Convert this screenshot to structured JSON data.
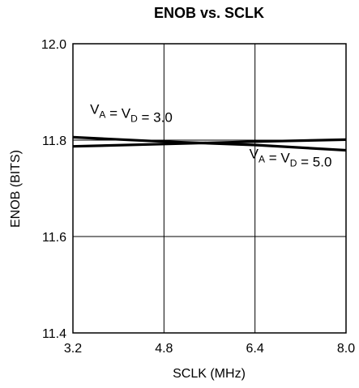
{
  "chart_data": {
    "type": "line",
    "title": "ENOB vs. SCLK",
    "xlabel": "SCLK (MHz)",
    "ylabel": "ENOB (BITS)",
    "xlim": [
      3.2,
      8.0
    ],
    "ylim": [
      11.4,
      12.0
    ],
    "x_ticks": [
      "3.2",
      "4.8",
      "6.4",
      "8.0"
    ],
    "y_ticks": [
      "12.0",
      "11.8",
      "11.6",
      "11.4"
    ],
    "x_tick_values": [
      3.2,
      4.8,
      6.4,
      8.0
    ],
    "y_tick_values": [
      12.0,
      11.8,
      11.6,
      11.4
    ],
    "grid": true,
    "series": [
      {
        "x": [
          3.2,
          4.8,
          6.4,
          8.0
        ],
        "values": [
          11.806,
          11.797,
          11.79,
          11.779
        ]
      },
      {
        "x": [
          3.2,
          4.8,
          6.4,
          8.0
        ],
        "values": [
          11.787,
          11.792,
          11.797,
          11.801
        ]
      }
    ],
    "annotations": [
      {
        "series_index": 0,
        "parts": [
          {
            "text": "V",
            "sub": false
          },
          {
            "text": "A",
            "sub": true
          },
          {
            "text": " = V",
            "sub": false
          },
          {
            "text": "D",
            "sub": true
          },
          {
            "text": " = 3.0",
            "sub": false
          }
        ],
        "x": 3.5,
        "y": 11.855
      },
      {
        "series_index": 1,
        "parts": [
          {
            "text": "V",
            "sub": false
          },
          {
            "text": "A",
            "sub": true
          },
          {
            "text": " = V",
            "sub": false
          },
          {
            "text": "D",
            "sub": true
          },
          {
            "text": " = 5.0",
            "sub": false
          }
        ],
        "x": 6.3,
        "y": 11.762
      }
    ]
  }
}
